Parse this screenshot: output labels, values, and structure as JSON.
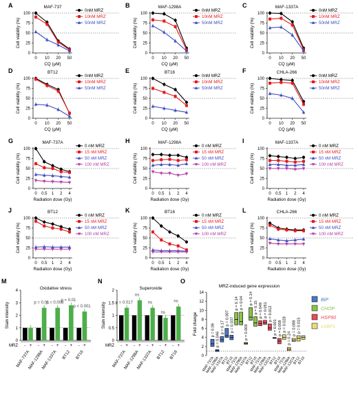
{
  "figure": {
    "colors": {
      "black": "#000000",
      "red": "#e41a1c",
      "blue": "#3b4cc0",
      "magenta": "#b23aa6",
      "green": "#4daf4a",
      "axis": "#222222",
      "grid": "#555555",
      "bip": "#4a78c8",
      "chop": "#8bc34a",
      "hsp90": "#e94b5a",
      "sxbp1": "#e8dc7a"
    }
  },
  "chart_data": [
    {
      "id": "A",
      "panel_letter": "A",
      "type": "line",
      "title": "MAF-737",
      "x": [
        "0",
        "10",
        "20",
        "50"
      ],
      "xlabel": "CQ (µM)",
      "ylabel": "Cell viability (%)",
      "ylim": [
        0,
        100
      ],
      "yticks": [
        0,
        25,
        50,
        75,
        100
      ],
      "ref_lines": [
        100,
        50
      ],
      "series": [
        {
          "name": "0nM MRZ",
          "color": "black",
          "values": [
            100,
            77,
            30,
            10
          ]
        },
        {
          "name": "10nM MRZ",
          "color": "red",
          "values": [
            90,
            72,
            27,
            8
          ]
        },
        {
          "name": "50nM MRZ",
          "color": "blue",
          "values": [
            53,
            33,
            20,
            5
          ]
        }
      ]
    },
    {
      "id": "B",
      "panel_letter": "B",
      "type": "line",
      "title": "MAF-1298A",
      "x": [
        "0",
        "10",
        "20",
        "50"
      ],
      "xlabel": "CQ (µM)",
      "ylabel": "Cell viability (%)",
      "ylim": [
        0,
        100
      ],
      "yticks": [
        0,
        25,
        50,
        75,
        100
      ],
      "ref_lines": [
        100,
        50
      ],
      "series": [
        {
          "name": "0nM MRZ",
          "color": "black",
          "values": [
            100,
            98,
            82,
            12
          ]
        },
        {
          "name": "10nM MRZ",
          "color": "red",
          "values": [
            83,
            80,
            66,
            8
          ]
        },
        {
          "name": "50nM MRZ",
          "color": "blue",
          "values": [
            68,
            52,
            30,
            5
          ]
        }
      ]
    },
    {
      "id": "C",
      "panel_letter": "C",
      "type": "line",
      "title": "MAF-1337A",
      "x": [
        "0",
        "10",
        "20",
        "50"
      ],
      "xlabel": "CQ (µM)",
      "ylabel": "Cell viability (%)",
      "ylim": [
        0,
        100
      ],
      "yticks": [
        0,
        25,
        50,
        75,
        100
      ],
      "ref_lines": [
        100,
        50
      ],
      "series": [
        {
          "name": "0nM MRZ",
          "color": "black",
          "values": [
            100,
            99,
            78,
            12
          ]
        },
        {
          "name": "10nM MRZ",
          "color": "red",
          "values": [
            85,
            87,
            70,
            8
          ]
        },
        {
          "name": "50nM MRZ",
          "color": "blue",
          "values": [
            63,
            65,
            45,
            5
          ]
        }
      ]
    },
    {
      "id": "D",
      "panel_letter": "D",
      "type": "line",
      "title": "BT12",
      "x": [
        "0",
        "10",
        "20",
        "50"
      ],
      "xlabel": "CQ (µM)",
      "ylabel": "Cell viability (%)",
      "ylim": [
        0,
        100
      ],
      "yticks": [
        0,
        25,
        50,
        75,
        100
      ],
      "ref_lines": [
        100,
        50
      ],
      "series": [
        {
          "name": "0nM MRZ",
          "color": "black",
          "values": [
            100,
            85,
            72,
            12
          ]
        },
        {
          "name": "10nM MRZ",
          "color": "red",
          "values": [
            98,
            82,
            68,
            13
          ]
        },
        {
          "name": "50nM MRZ",
          "color": "blue",
          "values": [
            35,
            33,
            22,
            5
          ]
        }
      ]
    },
    {
      "id": "E",
      "panel_letter": "E",
      "type": "line",
      "title": "BT16",
      "x": [
        "0",
        "10",
        "20",
        "50"
      ],
      "xlabel": "CQ (µM)",
      "ylabel": "Cell viability (%)",
      "ylim": [
        0,
        100
      ],
      "yticks": [
        0,
        25,
        50,
        75,
        100
      ],
      "ref_lines": [
        100,
        50
      ],
      "series": [
        {
          "name": "0nM MRZ",
          "color": "black",
          "values": [
            100,
            85,
            72,
            40
          ]
        },
        {
          "name": "10nM MRZ",
          "color": "red",
          "values": [
            75,
            65,
            55,
            32
          ]
        },
        {
          "name": "50nM MRZ",
          "color": "blue",
          "values": [
            30,
            25,
            20,
            15
          ]
        }
      ]
    },
    {
      "id": "F",
      "panel_letter": "F",
      "type": "line",
      "title": "CHLA-266",
      "x": [
        "0",
        "10",
        "20",
        "50"
      ],
      "xlabel": "CQ (µM)",
      "ylabel": "Cell viability (%)",
      "ylim": [
        0,
        100
      ],
      "yticks": [
        0,
        25,
        50,
        75,
        100
      ],
      "ref_lines": [
        100,
        50
      ],
      "series": [
        {
          "name": "0nM MRZ",
          "color": "black",
          "values": [
            100,
            97,
            95,
            42
          ]
        },
        {
          "name": "10nM MRZ",
          "color": "red",
          "values": [
            88,
            90,
            88,
            35
          ]
        },
        {
          "name": "50nM MRZ",
          "color": "blue",
          "values": [
            62,
            58,
            50,
            15
          ]
        }
      ]
    },
    {
      "id": "G",
      "panel_letter": "G",
      "type": "line",
      "title": "MAF-737A",
      "x": [
        "0",
        "0.5",
        "1",
        "2",
        "4"
      ],
      "xlabel": "Radiation dose (Gy)",
      "ylabel": "Cell viability (%)",
      "ylim": [
        0,
        100
      ],
      "yticks": [
        0,
        25,
        50,
        75,
        100
      ],
      "ref_lines": [
        100,
        50
      ],
      "series": [
        {
          "name": "0 nM MRZ",
          "color": "black",
          "values": [
            100,
            67,
            57,
            48,
            42
          ]
        },
        {
          "name": "15 nM MRZ",
          "color": "red",
          "values": [
            62,
            52,
            50,
            42,
            40
          ]
        },
        {
          "name": "50 nM MRZ",
          "color": "blue",
          "values": [
            35,
            33,
            32,
            30,
            28
          ]
        },
        {
          "name": "100 nM MRZ",
          "color": "magenta",
          "values": [
            20,
            18,
            17,
            16,
            15
          ]
        }
      ]
    },
    {
      "id": "H",
      "panel_letter": "H",
      "type": "line",
      "title": "MAF-1298A",
      "x": [
        "0",
        "0.5",
        "1",
        "2",
        "4"
      ],
      "xlabel": "Radiation dose (Gy)",
      "ylabel": "Cell viability (%)",
      "ylim": [
        0,
        100
      ],
      "yticks": [
        0,
        25,
        50,
        75,
        100
      ],
      "ref_lines": [
        100,
        50
      ],
      "series": [
        {
          "name": "0 nM MRZ",
          "color": "black",
          "values": [
            85,
            85,
            83,
            83,
            78
          ]
        },
        {
          "name": "15 nM MRZ",
          "color": "red",
          "values": [
            70,
            72,
            73,
            70,
            72
          ]
        },
        {
          "name": "50 nM MRZ",
          "color": "blue",
          "values": [
            58,
            60,
            60,
            58,
            62
          ]
        },
        {
          "name": "100 nM MRZ",
          "color": "magenta",
          "values": [
            42,
            38,
            38,
            33,
            37
          ]
        }
      ]
    },
    {
      "id": "I",
      "panel_letter": "I",
      "type": "line",
      "title": "MAF-1337A",
      "x": [
        "0",
        "0.5",
        "1",
        "2",
        "4"
      ],
      "xlabel": "Radiation dose (Gy)",
      "ylabel": "Cell viability (%)",
      "ylim": [
        0,
        100
      ],
      "yticks": [
        0,
        25,
        50,
        75,
        100
      ],
      "ref_lines": [
        100,
        50
      ],
      "series": [
        {
          "name": "0 nM MRZ",
          "color": "black",
          "values": [
            82,
            80,
            78,
            75,
            78
          ]
        },
        {
          "name": "15 nM MRZ",
          "color": "red",
          "values": [
            70,
            70,
            68,
            66,
            68
          ]
        },
        {
          "name": "50 nM MRZ",
          "color": "blue",
          "values": [
            60,
            60,
            58,
            58,
            60
          ]
        },
        {
          "name": "100 nM MRZ",
          "color": "magenta",
          "values": [
            50,
            50,
            50,
            48,
            50
          ]
        }
      ]
    },
    {
      "id": "J",
      "panel_letter": "J",
      "type": "line",
      "title": "BT12",
      "x": [
        "0",
        "0.5",
        "1",
        "2",
        "4"
      ],
      "xlabel": "Radiation dose (Gy)",
      "ylabel": "Cell viability (%)",
      "ylim": [
        0,
        100
      ],
      "yticks": [
        0,
        25,
        50,
        75,
        100
      ],
      "ref_lines": [
        100,
        50
      ],
      "series": [
        {
          "name": "0 nM MRZ",
          "color": "black",
          "values": [
            100,
            90,
            85,
            78,
            72
          ]
        },
        {
          "name": "15 nM MRZ",
          "color": "red",
          "values": [
            92,
            80,
            75,
            72,
            65
          ]
        },
        {
          "name": "50 nM MRZ",
          "color": "blue",
          "values": [
            27,
            28,
            27,
            27,
            27
          ]
        },
        {
          "name": "100 nM MRZ",
          "color": "magenta",
          "values": [
            22,
            22,
            22,
            22,
            22
          ]
        }
      ]
    },
    {
      "id": "K",
      "panel_letter": "K",
      "type": "line",
      "title": "BT16",
      "x": [
        "0",
        "0.5",
        "1",
        "2",
        "4"
      ],
      "xlabel": "Radiation dose (Gy)",
      "ylabel": "Cell viability (%)",
      "ylim": [
        0,
        100
      ],
      "yticks": [
        0,
        25,
        50,
        75,
        100
      ],
      "ref_lines": [
        100,
        50
      ],
      "series": [
        {
          "name": "0 nM MRZ",
          "color": "black",
          "values": [
            100,
            80,
            65,
            55,
            40
          ]
        },
        {
          "name": "15 nM MRZ",
          "color": "red",
          "values": [
            65,
            45,
            35,
            30,
            20
          ]
        },
        {
          "name": "50 nM MRZ",
          "color": "blue",
          "values": [
            20,
            18,
            18,
            18,
            17
          ]
        },
        {
          "name": "100 nM MRZ",
          "color": "magenta",
          "values": [
            15,
            15,
            15,
            15,
            15
          ]
        }
      ]
    },
    {
      "id": "L",
      "panel_letter": "L",
      "type": "line",
      "title": "CHLA-266",
      "x": [
        "0",
        "0.5",
        "1",
        "2",
        "4"
      ],
      "xlabel": "Radiation dose (Gy)",
      "ylabel": "Cell viability (%)",
      "ylim": [
        0,
        100
      ],
      "yticks": [
        0,
        25,
        50,
        75,
        100
      ],
      "ref_lines": [
        100,
        50
      ],
      "series": [
        {
          "name": "0 nM MRZ",
          "color": "black",
          "values": [
            87,
            75,
            72,
            70,
            70
          ]
        },
        {
          "name": "15 nM MRZ",
          "color": "red",
          "values": [
            82,
            72,
            70,
            68,
            68
          ]
        },
        {
          "name": "50 nM MRZ",
          "color": "blue",
          "values": [
            48,
            45,
            43,
            45,
            47
          ]
        },
        {
          "name": "100 nM MRZ",
          "color": "magenta",
          "values": [
            37,
            35,
            35,
            35,
            35
          ]
        }
      ]
    },
    {
      "id": "M",
      "panel_letter": "M",
      "type": "bar",
      "title": "Oxidative stress",
      "ylabel": "Stain intensity",
      "ylim": [
        0,
        4
      ],
      "yticks": [
        0,
        1,
        2,
        3,
        4
      ],
      "row_label": "MRZ",
      "conditions": [
        "-",
        "+"
      ],
      "categories": [
        "MAF-737A",
        "MAF-1298A",
        "MAF-1337A",
        "BT12",
        "BT16"
      ],
      "series": [
        {
          "color": "black",
          "values": [
            1,
            1,
            1,
            1,
            1
          ]
        },
        {
          "color": "green",
          "values": [
            1.0,
            2.6,
            2.6,
            2.8,
            2.3
          ]
        }
      ],
      "annotations": [
        "",
        "p = 0.01",
        "p = 0.008",
        "p = 0.01",
        "p < 0.001"
      ]
    },
    {
      "id": "N",
      "panel_letter": "N",
      "type": "bar",
      "title": "Superoxide",
      "ylabel": "Stain intensity",
      "ylim": [
        0,
        2
      ],
      "yticks": [
        0,
        0.5,
        1,
        1.5,
        2
      ],
      "row_label": "MRZ",
      "conditions": [
        "-",
        "+"
      ],
      "categories": [
        "MAF-737A",
        "MAF-1298A",
        "MAF-1337A",
        "BT12",
        "BT16"
      ],
      "series": [
        {
          "color": "black",
          "values": [
            1,
            1,
            1,
            1,
            1
          ]
        },
        {
          "color": "green",
          "values": [
            1.3,
            1.6,
            1.3,
            0.9,
            1.35
          ]
        }
      ],
      "annotations": [
        "p = 0.017",
        "ns",
        "ns",
        "ns",
        "ns"
      ]
    },
    {
      "id": "O",
      "panel_letter": "O",
      "type": "boxplot",
      "title": "MRZ-induced gene expression",
      "ylabel": "Fold change",
      "ylim": [
        0,
        14
      ],
      "yticks": [
        0,
        2,
        4,
        6,
        8,
        10,
        12,
        14
      ],
      "categories": [
        "MAF-737A",
        "MAF-1298A",
        "MAF-1337A",
        "BT12",
        "BT16"
      ],
      "legend": [
        {
          "name": "BiP",
          "color": "bip"
        },
        {
          "name": "CHOP",
          "color": "chop"
        },
        {
          "name": "HSP90",
          "color": "hsp90"
        },
        {
          "name": "sXBP1",
          "color": "sxbp1"
        }
      ],
      "groups": [
        {
          "gene": "BiP",
          "color": "bip",
          "boxes": [
            {
              "low": 2.0,
              "high": 3.6,
              "med": 2.6,
              "p": "p = 0.06"
            },
            {
              "low": 0.9,
              "high": 1.3,
              "med": 1.1,
              "p": "p = 0.046"
            },
            {
              "low": 3.0,
              "high": 4.2,
              "med": 3.5,
              "p": "p = 0.17"
            },
            {
              "low": 4.0,
              "high": 6.0,
              "med": 4.4,
              "p": "p = 0.007"
            },
            {
              "low": 3.5,
              "high": 4.5,
              "med": 4.0,
              "p": "p = 0.037"
            }
          ]
        },
        {
          "gene": "CHOP",
          "color": "chop",
          "boxes": [
            {
              "low": 6.8,
              "high": 9.5,
              "med": 8.0,
              "p": "p = 0.14"
            },
            {
              "low": 6.8,
              "high": 9.6,
              "med": 7.5,
              "p": "p = 0.04"
            },
            {
              "low": 2.5,
              "high": 2.9,
              "med": 2.7,
              "p": "p = 0.009"
            },
            {
              "low": 7.8,
              "high": 10.6,
              "med": 8.5,
              "p": "p = 0.14"
            },
            {
              "low": 6.5,
              "high": 8.6,
              "med": 7.2,
              "p": "p = 0.15"
            }
          ]
        },
        {
          "gene": "HSP90",
          "color": "hsp90",
          "boxes": [
            {
              "low": 6.6,
              "high": 7.7,
              "med": 7.1,
              "p": "p = 0.049"
            },
            {
              "low": 6.9,
              "high": 7.8,
              "med": 7.3,
              "p": "p = 0.051"
            },
            {
              "low": 5.6,
              "high": 7.0,
              "med": 6.1,
              "p": "p = 0.012"
            },
            {
              "low": 3.8,
              "high": 4.0,
              "med": 3.9,
              "p": "p = 0.001"
            },
            {
              "low": 2.6,
              "high": 3.8,
              "med": 3.2,
              "p": "p = 0.058"
            }
          ]
        },
        {
          "gene": "sXBP1",
          "color": "sxbp1",
          "boxes": [
            {
              "low": 3.6,
              "high": 4.6,
              "med": 4.0,
              "p": "p = 0.028"
            },
            {
              "low": 1.1,
              "high": 1.8,
              "med": 1.4,
              "p": "p = 0.24"
            },
            {
              "low": 3.1,
              "high": 3.8,
              "med": 3.4,
              "p": "p = 0.088"
            },
            {
              "low": 3.2,
              "high": 4.4,
              "med": 3.8,
              "p": "p = 0.015"
            },
            {
              "low": 3.6,
              "high": 4.4,
              "med": 4.0,
              "p": ""
            }
          ]
        }
      ]
    }
  ]
}
